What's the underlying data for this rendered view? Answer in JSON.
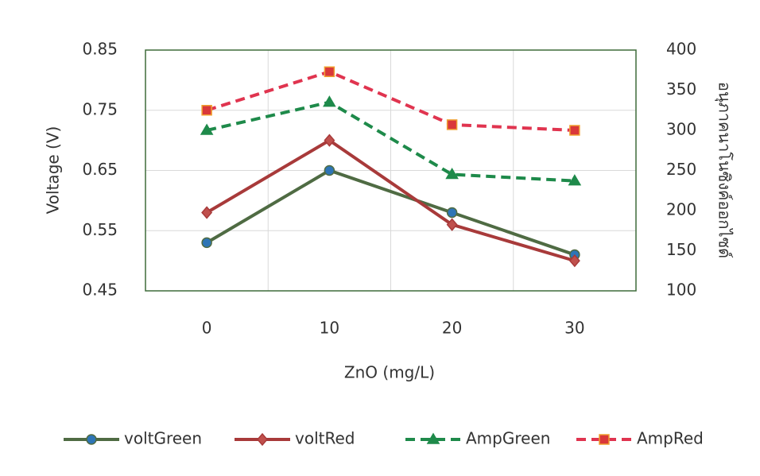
{
  "chart_data": {
    "type": "line",
    "categories": [
      "0",
      "10",
      "20",
      "30"
    ],
    "xlabel": "ZnO (mg/L)",
    "ylabel": "Voltage (V)",
    "y2label": "อนุภาคนาโนซิงค์ออกไซด์",
    "ylim": [
      0.45,
      0.85
    ],
    "yticks": [
      0.45,
      0.55,
      0.65,
      0.75,
      0.85
    ],
    "y2lim": [
      100,
      400
    ],
    "y2ticks": [
      100,
      150,
      200,
      250,
      300,
      350,
      400
    ],
    "grid": true,
    "legend": "bottom",
    "series": [
      {
        "name": "voltGreen",
        "color": "#4f6b43",
        "marker": "circle",
        "marker_color": "#2e75b6",
        "line_style": "solid",
        "values": [
          0.53,
          0.65,
          0.58,
          0.51
        ]
      },
      {
        "name": "voltRed",
        "color": "#a83a3a",
        "marker": "diamond",
        "marker_color": "#c0504d",
        "line_style": "solid",
        "values": [
          0.58,
          0.7,
          0.56,
          0.5
        ]
      },
      {
        "name": "AmpGreen",
        "color": "#1e8a4a",
        "marker": "triangle",
        "marker_color": "#1e8a4a",
        "line_style": "dashed",
        "axis": "y2",
        "values": [
          300,
          335,
          245,
          237
        ]
      },
      {
        "name": "AmpRed",
        "color": "#e0344f",
        "marker": "square",
        "marker_color": "#d9383a",
        "line_style": "dashed",
        "axis": "y2",
        "values": [
          325,
          373,
          307,
          300
        ]
      }
    ]
  }
}
